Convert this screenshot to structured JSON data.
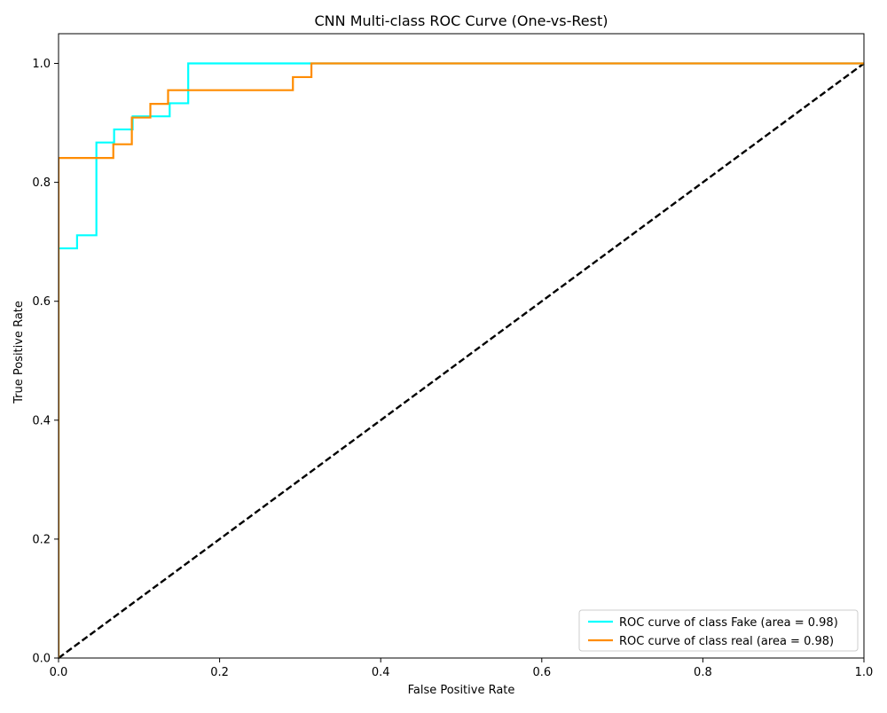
{
  "chart_data": {
    "type": "line",
    "title": "CNN Multi-class ROC Curve (One-vs-Rest)",
    "xlabel": "False Positive Rate",
    "ylabel": "True Positive Rate",
    "xlim": [
      0.0,
      1.0
    ],
    "ylim": [
      0.0,
      1.05
    ],
    "xticks": [
      0.0,
      0.2,
      0.4,
      0.6,
      0.8,
      1.0
    ],
    "yticks": [
      0.0,
      0.2,
      0.4,
      0.6,
      0.8,
      1.0
    ],
    "xtick_labels": [
      "0.0",
      "0.2",
      "0.4",
      "0.6",
      "0.8",
      "1.0"
    ],
    "ytick_labels": [
      "0.0",
      "0.2",
      "0.4",
      "0.6",
      "0.8",
      "1.0"
    ],
    "grid": false,
    "legend_position": "lower-right",
    "series": [
      {
        "name": "ROC curve of class Fake (area = 0.98)",
        "color": "#00ffff",
        "style": "solid",
        "x": [
          0.0,
          0.0,
          0.023,
          0.023,
          0.047,
          0.047,
          0.069,
          0.069,
          0.092,
          0.092,
          0.138,
          0.138,
          0.161,
          0.161,
          1.0
        ],
        "y": [
          0.0,
          0.689,
          0.689,
          0.711,
          0.711,
          0.867,
          0.867,
          0.889,
          0.889,
          0.911,
          0.911,
          0.933,
          0.933,
          1.0,
          1.0
        ]
      },
      {
        "name": "ROC curve of class real (area = 0.98)",
        "color": "#ff8c00",
        "style": "solid",
        "x": [
          0.0,
          0.0,
          0.068,
          0.068,
          0.091,
          0.091,
          0.114,
          0.114,
          0.136,
          0.136,
          0.291,
          0.291,
          0.314,
          0.314,
          1.0
        ],
        "y": [
          0.0,
          0.841,
          0.841,
          0.864,
          0.864,
          0.909,
          0.909,
          0.932,
          0.932,
          0.955,
          0.955,
          0.977,
          0.977,
          1.0,
          1.0
        ]
      },
      {
        "name": "",
        "color": "#000000",
        "style": "dashed",
        "x": [
          0.0,
          1.0
        ],
        "y": [
          0.0,
          1.0
        ]
      }
    ]
  }
}
